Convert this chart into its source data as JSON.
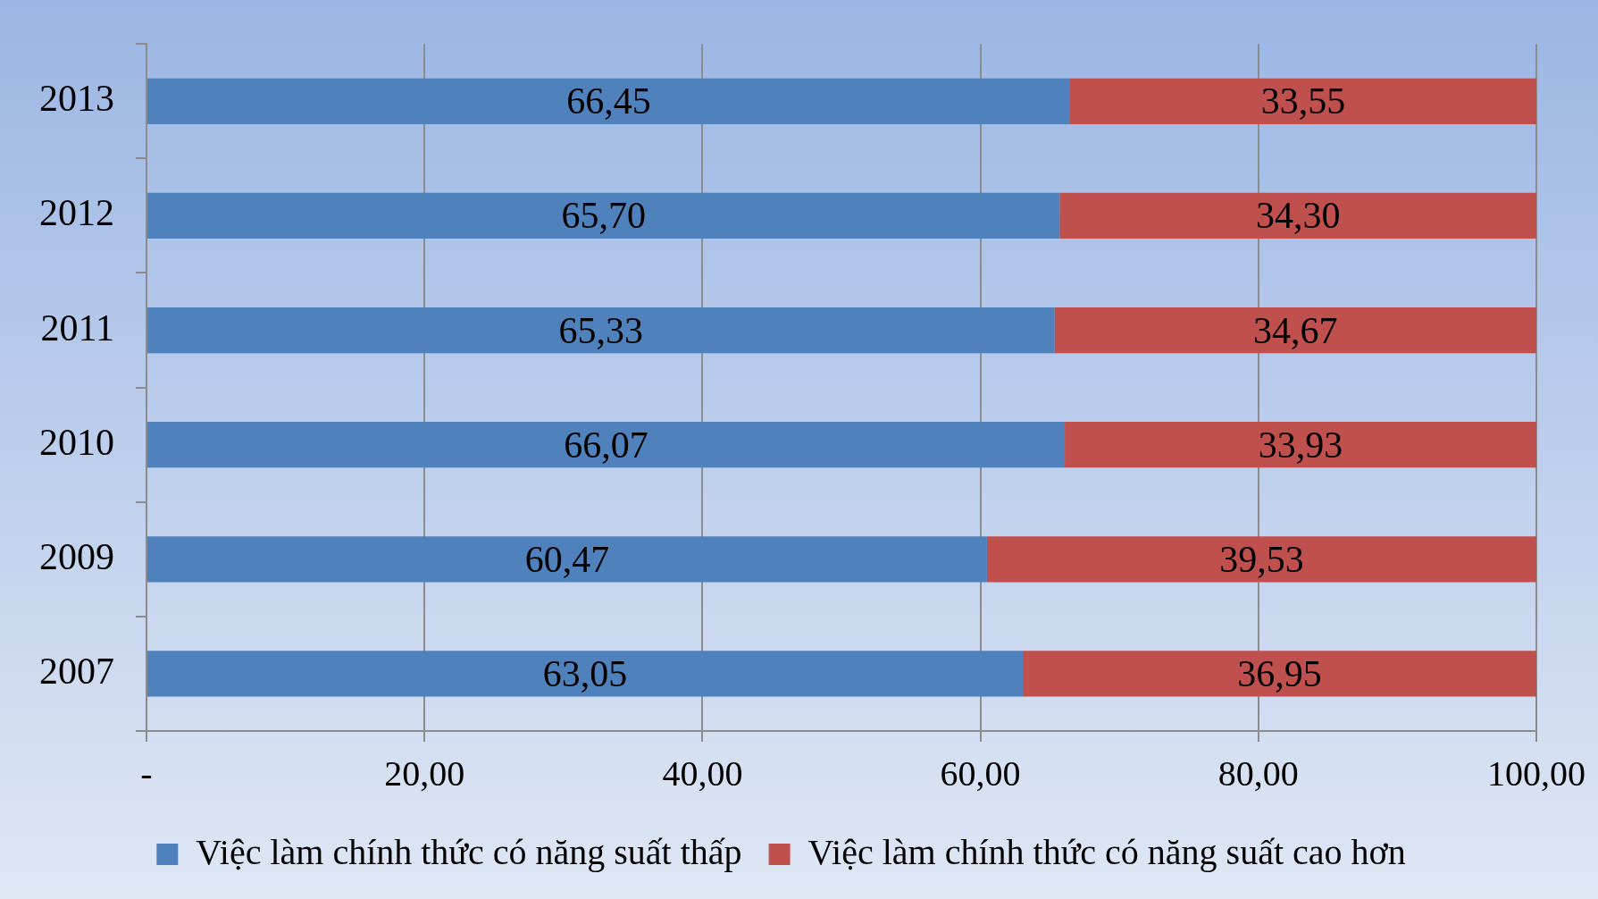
{
  "chart_data": {
    "type": "bar",
    "orientation": "horizontal",
    "stacked": true,
    "categories": [
      "2013",
      "2012",
      "2011",
      "2010",
      "2009",
      "2007"
    ],
    "series": [
      {
        "name": "Việc làm chính thức có năng suất thấp",
        "color": "#4f81bd",
        "values": [
          66.45,
          65.7,
          65.33,
          66.07,
          60.47,
          63.05
        ],
        "value_labels": [
          "66,45",
          "65,70",
          "65,33",
          "66,07",
          "60,47",
          "63,05"
        ]
      },
      {
        "name": "Việc làm chính thức có năng suất cao hơn",
        "color": "#c0504d",
        "values": [
          33.55,
          34.3,
          34.67,
          33.93,
          39.53,
          36.95
        ],
        "value_labels": [
          "33,55",
          "34,30",
          "34,67",
          "33,93",
          "39,53",
          "36,95"
        ]
      }
    ],
    "xlim": [
      0,
      100
    ],
    "xticks": [
      {
        "value": 0,
        "label": "-"
      },
      {
        "value": 20,
        "label": "20,00"
      },
      {
        "value": 40,
        "label": "40,00"
      },
      {
        "value": 60,
        "label": "60,00"
      },
      {
        "value": 80,
        "label": "80,00"
      },
      {
        "value": 100,
        "label": "100,00"
      }
    ],
    "grid": "x",
    "legend": "bottom"
  }
}
